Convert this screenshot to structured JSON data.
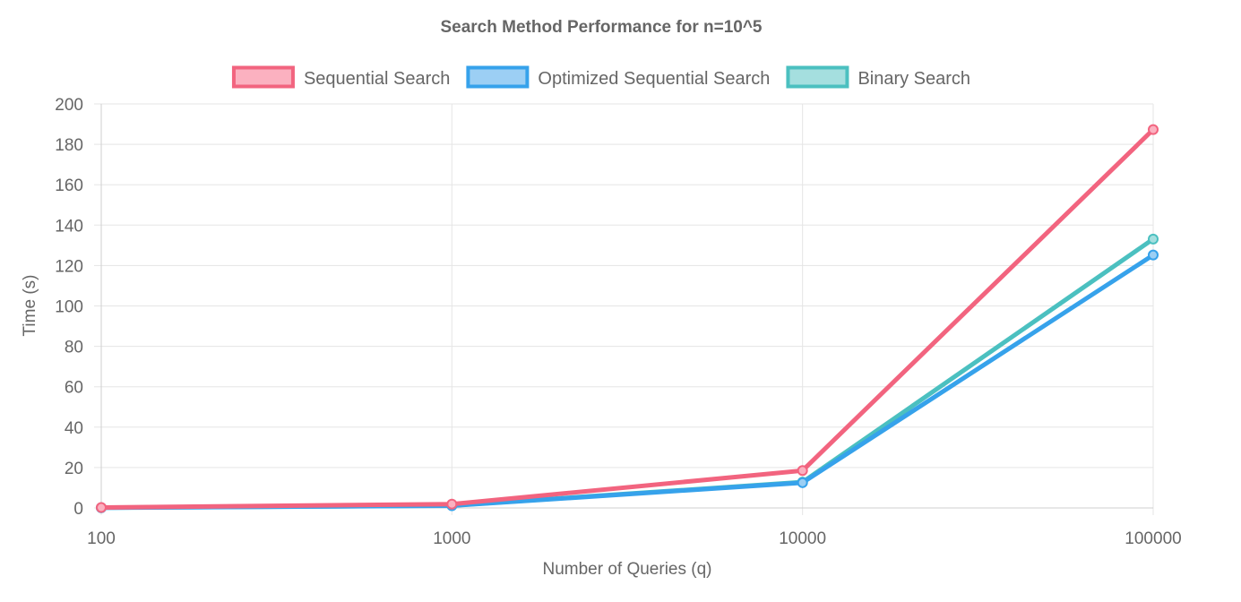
{
  "chart_data": {
    "type": "line",
    "title": "Search Method Performance for n=10^5",
    "xlabel": "Number of Queries (q)",
    "ylabel": "Time (s)",
    "categories": [
      "100",
      "1000",
      "10000",
      "100000"
    ],
    "ylim": [
      0,
      200
    ],
    "yticks": [
      "0",
      "20",
      "40",
      "60",
      "80",
      "100",
      "120",
      "140",
      "160",
      "180",
      "200"
    ],
    "grid": true,
    "legend_position": "top",
    "series": [
      {
        "name": "Sequential Search",
        "values": [
          0.2,
          1.9,
          18.5,
          187.3
        ],
        "color": "#f2647f",
        "fill": "#fbb1c0"
      },
      {
        "name": "Optimized Sequential Search",
        "values": [
          0.1,
          1.1,
          12.5,
          125.2
        ],
        "color": "#36a2eb",
        "fill": "#9ccff4"
      },
      {
        "name": "Binary Search",
        "values": [
          0.1,
          1.2,
          12.8,
          133.1
        ],
        "color": "#4bc0c0",
        "fill": "#a5dfdf"
      }
    ]
  }
}
